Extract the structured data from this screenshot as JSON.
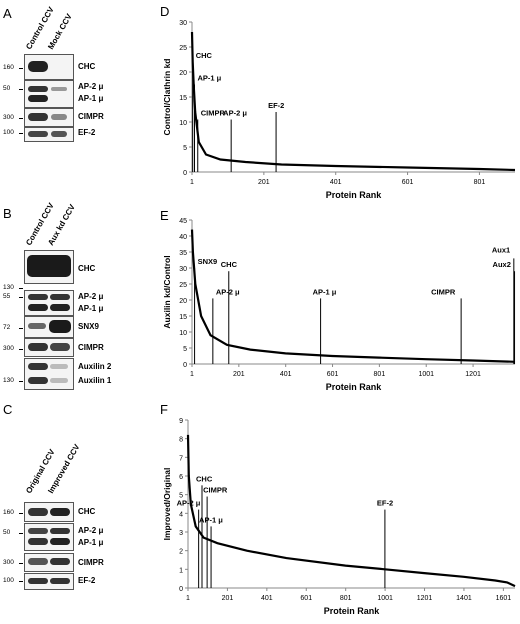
{
  "panels": {
    "A": {
      "letter": "A",
      "lanes": [
        "Control CCV",
        "Mock CCV"
      ],
      "bands": [
        {
          "label": "CHC",
          "mw": "160"
        },
        {
          "label": "AP-2 μ",
          "mw": "50"
        },
        {
          "label": "AP-1 μ",
          "mw": ""
        },
        {
          "label": "CIMPR",
          "mw": "300"
        },
        {
          "label": "EF-2",
          "mw": "100"
        }
      ]
    },
    "B": {
      "letter": "B",
      "lanes": [
        "Control CCV",
        "Aux kd CCV"
      ],
      "bands": [
        {
          "label": "CHC",
          "mw": "130"
        },
        {
          "label": "AP-2 μ",
          "mw": "55"
        },
        {
          "label": "AP-1 μ",
          "mw": ""
        },
        {
          "label": "SNX9",
          "mw": "72"
        },
        {
          "label": "CIMPR",
          "mw": "300"
        },
        {
          "label": "Auxilin 2",
          "mw": ""
        },
        {
          "label": "Auxilin 1",
          "mw": "130"
        }
      ]
    },
    "C": {
      "letter": "C",
      "lanes": [
        "Original CCV",
        "Improved CCV"
      ],
      "bands": [
        {
          "label": "CHC",
          "mw": "160"
        },
        {
          "label": "AP-2 μ",
          "mw": "50"
        },
        {
          "label": "AP-1 μ",
          "mw": ""
        },
        {
          "label": "CIMPR",
          "mw": "300"
        },
        {
          "label": "EF-2",
          "mw": "100"
        }
      ]
    }
  },
  "chart_data": [
    {
      "type": "line",
      "panel": "D",
      "xlabel": "Protein Rank",
      "ylabel": "Control/Clathrin kd",
      "xlim": [
        1,
        900
      ],
      "ylim": [
        0,
        30
      ],
      "xticks": [
        1,
        201,
        401,
        601,
        801
      ],
      "yticks": [
        0,
        5,
        10,
        15,
        20,
        25,
        30
      ],
      "curve": [
        [
          1,
          28
        ],
        [
          3,
          22
        ],
        [
          6,
          17
        ],
        [
          10,
          12
        ],
        [
          20,
          6
        ],
        [
          40,
          3.5
        ],
        [
          80,
          2.5
        ],
        [
          150,
          2
        ],
        [
          250,
          1.5
        ],
        [
          400,
          1.2
        ],
        [
          600,
          0.9
        ],
        [
          800,
          0.6
        ],
        [
          900,
          0.4
        ]
      ],
      "markers": [
        {
          "label": "CHC",
          "x": 3,
          "y": 22
        },
        {
          "label": "AP-1 μ",
          "x": 8,
          "y": 17.5
        },
        {
          "label": "CIMPR",
          "x": 17,
          "y": 10.5
        },
        {
          "label": "AP-2 μ",
          "x": 110,
          "y": 10.5
        },
        {
          "label": "EF-2",
          "x": 235,
          "y": 12
        }
      ]
    },
    {
      "type": "line",
      "panel": "E",
      "xlabel": "Protein Rank",
      "ylabel": "Auxilin kd/Control",
      "xlim": [
        1,
        1380
      ],
      "ylim": [
        0,
        45
      ],
      "xticks": [
        1,
        201,
        401,
        601,
        801,
        1001,
        1201
      ],
      "yticks": [
        0,
        5,
        10,
        15,
        20,
        25,
        30,
        35,
        40,
        45
      ],
      "curve": [
        [
          1,
          42
        ],
        [
          5,
          35
        ],
        [
          15,
          25
        ],
        [
          40,
          15
        ],
        [
          80,
          9
        ],
        [
          150,
          6
        ],
        [
          250,
          4.5
        ],
        [
          400,
          3.3
        ],
        [
          600,
          2.5
        ],
        [
          800,
          2
        ],
        [
          1000,
          1.5
        ],
        [
          1200,
          1.1
        ],
        [
          1380,
          0.7
        ]
      ],
      "markers": [
        {
          "label": "SNX9",
          "x": 12,
          "y": 30
        },
        {
          "label": "AP-2 μ",
          "x": 90,
          "y": 20.5
        },
        {
          "label": "CHC",
          "x": 158,
          "y": 29
        },
        {
          "label": "AP-1 μ",
          "x": 550,
          "y": 20.5
        },
        {
          "label": "CIMPR",
          "x": 1150,
          "y": 20.5
        },
        {
          "label": "Aux1",
          "x": 1375,
          "y": 33
        },
        {
          "label": "Aux2",
          "x": 1378,
          "y": 29
        }
      ]
    },
    {
      "type": "line",
      "panel": "F",
      "xlabel": "Protein Rank",
      "ylabel": "Improved/Original",
      "xlim": [
        1,
        1660
      ],
      "ylim": [
        0,
        9
      ],
      "xticks": [
        1,
        201,
        401,
        601,
        801,
        1001,
        1201,
        1401,
        1601
      ],
      "yticks": [
        0,
        1,
        2,
        3,
        4,
        5,
        6,
        7,
        8,
        9
      ],
      "curve": [
        [
          1,
          8.2
        ],
        [
          5,
          6
        ],
        [
          15,
          4.5
        ],
        [
          40,
          3.3
        ],
        [
          80,
          2.7
        ],
        [
          150,
          2.4
        ],
        [
          300,
          2
        ],
        [
          500,
          1.6
        ],
        [
          800,
          1.2
        ],
        [
          1000,
          1
        ],
        [
          1200,
          0.8
        ],
        [
          1400,
          0.6
        ],
        [
          1560,
          0.4
        ],
        [
          1620,
          0.3
        ],
        [
          1660,
          0.1
        ]
      ],
      "markers": [
        {
          "label": "CHC",
          "x": 72,
          "y": 5.5
        },
        {
          "label": "CIMPR",
          "x": 98,
          "y": 4.9
        },
        {
          "label": "AP-2 μ",
          "x": 55,
          "y": 4.2
        },
        {
          "label": "AP-1 μ",
          "x": 118,
          "y": 3.3
        },
        {
          "label": "EF-2",
          "x": 1000,
          "y": 4.2
        }
      ]
    }
  ]
}
